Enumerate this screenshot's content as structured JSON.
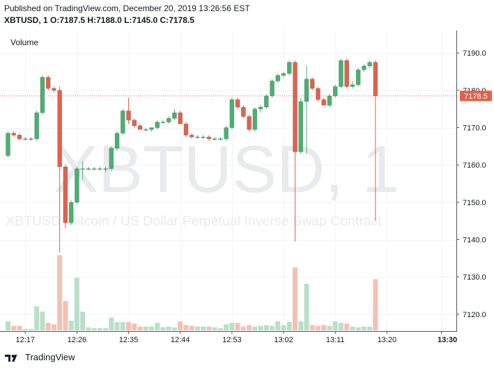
{
  "header": {
    "published": "Published on TradingView.com, December 20, 2019 13:26:56 EST",
    "symbol": "XBTUSD, 1",
    "ohlc": {
      "o_label": "O:",
      "o": "7187.5",
      "h_label": "H:",
      "h": "7188.0",
      "l_label": "L:",
      "l": "7145.0",
      "c_label": "C:",
      "c": "7178.5"
    }
  },
  "footer": {
    "brand": "TradingView"
  },
  "chart_data": {
    "type": "candlestick",
    "watermark_symbol": "XBTUSD, 1",
    "watermark_description": "XBTUSD: Bitcoin / US Dollar Perpetual Inverse Swap Contract",
    "volume_label": "Volume",
    "last_price": 7178.5,
    "last_price_label": "7178.5",
    "y_ticks": [
      "7190.0",
      "7180.0",
      "7170.0",
      "7160.0",
      "7150.0",
      "7140.0",
      "7130.0",
      "7120.0"
    ],
    "y_tick_values": [
      7190,
      7180,
      7170,
      7160,
      7150,
      7140,
      7130,
      7120
    ],
    "ylim": [
      7115.5,
      7196
    ],
    "x_ticks": [
      "12:17",
      "12:26",
      "12:35",
      "12:44",
      "12:53",
      "13:02",
      "13:11",
      "13:20",
      "13:30"
    ],
    "x_tick_index": [
      3,
      12,
      21,
      30,
      39,
      48,
      57,
      66,
      75.5
    ],
    "colors": {
      "up": "#53b987",
      "down": "#eb4d5c",
      "up_body": "#4caf72",
      "down_body": "#e0614d",
      "vol_up": "#b9dfc8",
      "vol_down": "#f5c0b4",
      "grid": "#f0f3fa",
      "axis": "#50535e",
      "last_line": "#e0614d",
      "watermark": "#e9eaee"
    },
    "candles": [
      {
        "o": 7162.5,
        "h": 7169,
        "l": 7162,
        "c": 7168.5,
        "v": 0.12
      },
      {
        "o": 7168.5,
        "h": 7169,
        "l": 7167.5,
        "c": 7168,
        "v": 0.06
      },
      {
        "o": 7168,
        "h": 7168.5,
        "l": 7166.5,
        "c": 7167,
        "v": 0.06
      },
      {
        "o": 7167,
        "h": 7167.5,
        "l": 7166.5,
        "c": 7167,
        "v": 0.02
      },
      {
        "o": 7167,
        "h": 7167.5,
        "l": 7166.5,
        "c": 7167,
        "v": 0.02
      },
      {
        "o": 7167,
        "h": 7174.5,
        "l": 7166.5,
        "c": 7174,
        "v": 0.32
      },
      {
        "o": 7174,
        "h": 7184,
        "l": 7173.5,
        "c": 7183.5,
        "v": 0.25
      },
      {
        "o": 7183.5,
        "h": 7184,
        "l": 7180,
        "c": 7180.5,
        "v": 0.1
      },
      {
        "o": 7180.5,
        "h": 7181,
        "l": 7179.5,
        "c": 7180,
        "v": 0.08
      },
      {
        "o": 7180,
        "h": 7181,
        "l": 7136.5,
        "c": 7159.5,
        "v": 1.0
      },
      {
        "o": 7159.5,
        "h": 7160,
        "l": 7143,
        "c": 7144.5,
        "v": 0.39
      },
      {
        "o": 7144.5,
        "h": 7150.5,
        "l": 7144,
        "c": 7150,
        "v": 0.13
      },
      {
        "o": 7150,
        "h": 7159.5,
        "l": 7149.5,
        "c": 7159,
        "v": 0.7
      },
      {
        "o": 7159,
        "h": 7161,
        "l": 7156,
        "c": 7159,
        "v": 0.25
      },
      {
        "o": 7159,
        "h": 7159.5,
        "l": 7158.5,
        "c": 7159,
        "v": 0.04
      },
      {
        "o": 7159,
        "h": 7159.5,
        "l": 7158.5,
        "c": 7159,
        "v": 0.03
      },
      {
        "o": 7159,
        "h": 7159.5,
        "l": 7158.5,
        "c": 7159,
        "v": 0.03
      },
      {
        "o": 7159,
        "h": 7159.5,
        "l": 7158,
        "c": 7159,
        "v": 0.03
      },
      {
        "o": 7159,
        "h": 7165,
        "l": 7158.5,
        "c": 7164.5,
        "v": 0.17
      },
      {
        "o": 7164.5,
        "h": 7169,
        "l": 7164,
        "c": 7168.5,
        "v": 0.11
      },
      {
        "o": 7168.5,
        "h": 7175,
        "l": 7168,
        "c": 7174.5,
        "v": 0.11
      },
      {
        "o": 7174.5,
        "h": 7178,
        "l": 7171,
        "c": 7172,
        "v": 0.11
      },
      {
        "o": 7172,
        "h": 7172.5,
        "l": 7170,
        "c": 7170.5,
        "v": 0.09
      },
      {
        "o": 7170.5,
        "h": 7171,
        "l": 7169.5,
        "c": 7169.5,
        "v": 0.05
      },
      {
        "o": 7169.5,
        "h": 7170,
        "l": 7169,
        "c": 7169.5,
        "v": 0.05
      },
      {
        "o": 7169.5,
        "h": 7170,
        "l": 7169,
        "c": 7170,
        "v": 0.05
      },
      {
        "o": 7170,
        "h": 7172,
        "l": 7169.5,
        "c": 7171.5,
        "v": 0.1
      },
      {
        "o": 7171.5,
        "h": 7172,
        "l": 7171,
        "c": 7171.5,
        "v": 0.04
      },
      {
        "o": 7171.5,
        "h": 7173,
        "l": 7171,
        "c": 7172.5,
        "v": 0.05
      },
      {
        "o": 7172.5,
        "h": 7175,
        "l": 7172,
        "c": 7174,
        "v": 0.04
      },
      {
        "o": 7174,
        "h": 7174.5,
        "l": 7171,
        "c": 7171,
        "v": 0.12
      },
      {
        "o": 7171,
        "h": 7171.5,
        "l": 7167.5,
        "c": 7168,
        "v": 0.07
      },
      {
        "o": 7168,
        "h": 7168.5,
        "l": 7167,
        "c": 7167.5,
        "v": 0.06
      },
      {
        "o": 7167.5,
        "h": 7168,
        "l": 7167,
        "c": 7167.5,
        "v": 0.05
      },
      {
        "o": 7167.5,
        "h": 7168,
        "l": 7167,
        "c": 7167.5,
        "v": 0.05
      },
      {
        "o": 7167.5,
        "h": 7168,
        "l": 7166.5,
        "c": 7167,
        "v": 0.05
      },
      {
        "o": 7167,
        "h": 7167.5,
        "l": 7166.5,
        "c": 7167,
        "v": 0.04
      },
      {
        "o": 7167,
        "h": 7167.5,
        "l": 7166.5,
        "c": 7167,
        "v": 0.03
      },
      {
        "o": 7167,
        "h": 7170.5,
        "l": 7166.5,
        "c": 7170,
        "v": 0.08
      },
      {
        "o": 7170,
        "h": 7178,
        "l": 7169.5,
        "c": 7177.5,
        "v": 0.1
      },
      {
        "o": 7177.5,
        "h": 7178,
        "l": 7175,
        "c": 7175.5,
        "v": 0.1
      },
      {
        "o": 7175.5,
        "h": 7176,
        "l": 7172.5,
        "c": 7173,
        "v": 0.05
      },
      {
        "o": 7173,
        "h": 7173.5,
        "l": 7169,
        "c": 7169.5,
        "v": 0.07
      },
      {
        "o": 7169.5,
        "h": 7175.5,
        "l": 7169,
        "c": 7175,
        "v": 0.05
      },
      {
        "o": 7175,
        "h": 7176,
        "l": 7174,
        "c": 7175.5,
        "v": 0.06
      },
      {
        "o": 7175.5,
        "h": 7179,
        "l": 7175,
        "c": 7178.5,
        "v": 0.07
      },
      {
        "o": 7178.5,
        "h": 7183,
        "l": 7178,
        "c": 7182.5,
        "v": 0.06
      },
      {
        "o": 7182.5,
        "h": 7184.5,
        "l": 7182,
        "c": 7184,
        "v": 0.12
      },
      {
        "o": 7184,
        "h": 7185,
        "l": 7183.5,
        "c": 7184.5,
        "v": 0.07
      },
      {
        "o": 7184.5,
        "h": 7188,
        "l": 7184,
        "c": 7187.5,
        "v": 0.11
      },
      {
        "o": 7187.5,
        "h": 7188,
        "l": 7139.5,
        "c": 7163.5,
        "v": 0.84
      },
      {
        "o": 7163.5,
        "h": 7178,
        "l": 7163,
        "c": 7177,
        "v": 0.12
      },
      {
        "o": 7177,
        "h": 7186.5,
        "l": 7163,
        "c": 7183,
        "v": 0.62
      },
      {
        "o": 7183,
        "h": 7183.5,
        "l": 7180,
        "c": 7180.5,
        "v": 0.07
      },
      {
        "o": 7180.5,
        "h": 7181,
        "l": 7177,
        "c": 7177.5,
        "v": 0.06
      },
      {
        "o": 7177.5,
        "h": 7178,
        "l": 7176,
        "c": 7176,
        "v": 0.07
      },
      {
        "o": 7176,
        "h": 7179,
        "l": 7175.5,
        "c": 7178.5,
        "v": 0.06
      },
      {
        "o": 7178.5,
        "h": 7181.5,
        "l": 7178,
        "c": 7181,
        "v": 0.12
      },
      {
        "o": 7181,
        "h": 7188.5,
        "l": 7180.5,
        "c": 7188,
        "v": 0.1
      },
      {
        "o": 7188,
        "h": 7188.5,
        "l": 7180.5,
        "c": 7181,
        "v": 0.09
      },
      {
        "o": 7181,
        "h": 7182.5,
        "l": 7180.5,
        "c": 7181.5,
        "v": 0.05
      },
      {
        "o": 7181.5,
        "h": 7186,
        "l": 7181,
        "c": 7185.5,
        "v": 0.04
      },
      {
        "o": 7185.5,
        "h": 7187,
        "l": 7185,
        "c": 7186.5,
        "v": 0.05
      },
      {
        "o": 7186.5,
        "h": 7188,
        "l": 7186,
        "c": 7187.5,
        "v": 0.05
      },
      {
        "o": 7187.5,
        "h": 7188,
        "l": 7145,
        "c": 7178.5,
        "v": 0.68
      }
    ]
  }
}
